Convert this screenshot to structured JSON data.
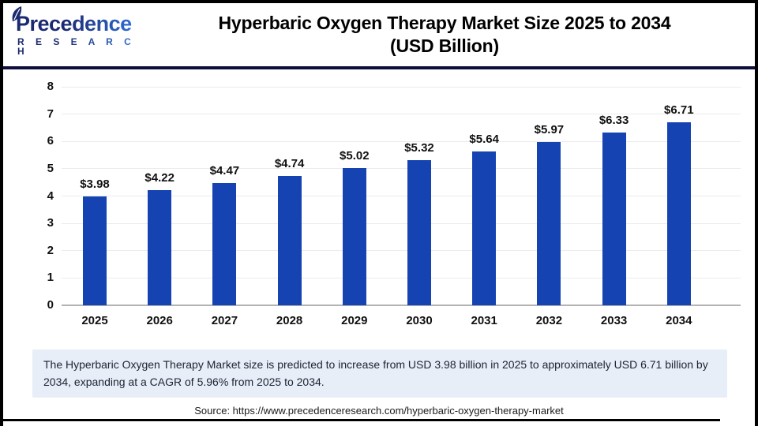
{
  "logo": {
    "brand_top": "Precedence",
    "brand_bottom": "R E S E A R C H",
    "icon": "leaf-icon"
  },
  "header": {
    "title_line1": "Hyperbaric Oxygen Therapy Market Size 2025 to 2034",
    "title_line2": "(USD Billion)"
  },
  "chart_data": {
    "type": "bar",
    "title": "Hyperbaric Oxygen Therapy Market Size 2025 to 2034 (USD Billion)",
    "categories": [
      "2025",
      "2026",
      "2027",
      "2028",
      "2029",
      "2030",
      "2031",
      "2032",
      "2033",
      "2034"
    ],
    "values": [
      3.98,
      4.22,
      4.47,
      4.74,
      5.02,
      5.32,
      5.64,
      5.97,
      6.33,
      6.71
    ],
    "labels": [
      "$3.98",
      "$4.22",
      "$4.47",
      "$4.74",
      "$5.02",
      "$5.32",
      "$5.64",
      "$5.97",
      "$6.33",
      "$6.71"
    ],
    "xlabel": "",
    "ylabel": "",
    "ylim": [
      0,
      8
    ],
    "yticks": [
      0,
      1,
      2,
      3,
      4,
      5,
      6,
      7,
      8
    ],
    "grid": true,
    "legend": "none",
    "bar_color": "#1544b2"
  },
  "note": {
    "text": "The Hyperbaric Oxygen Therapy Market size is predicted to increase from USD 3.98 billion in 2025 to approximately USD 6.71 billion by 2034, expanding at a CAGR of 5.96% from 2025 to 2034."
  },
  "source": {
    "text": "Source: https://www.precedenceresearch.com/hyperbaric-oxygen-therapy-market"
  },
  "colors": {
    "bar": "#1544b2",
    "divider": "#0e0e3d",
    "note_bg": "#e8eef7",
    "grid": "#ebebeb",
    "baseline": "#b3b3b3",
    "navy": "#1b2a70",
    "blue": "#2e6fd6"
  }
}
